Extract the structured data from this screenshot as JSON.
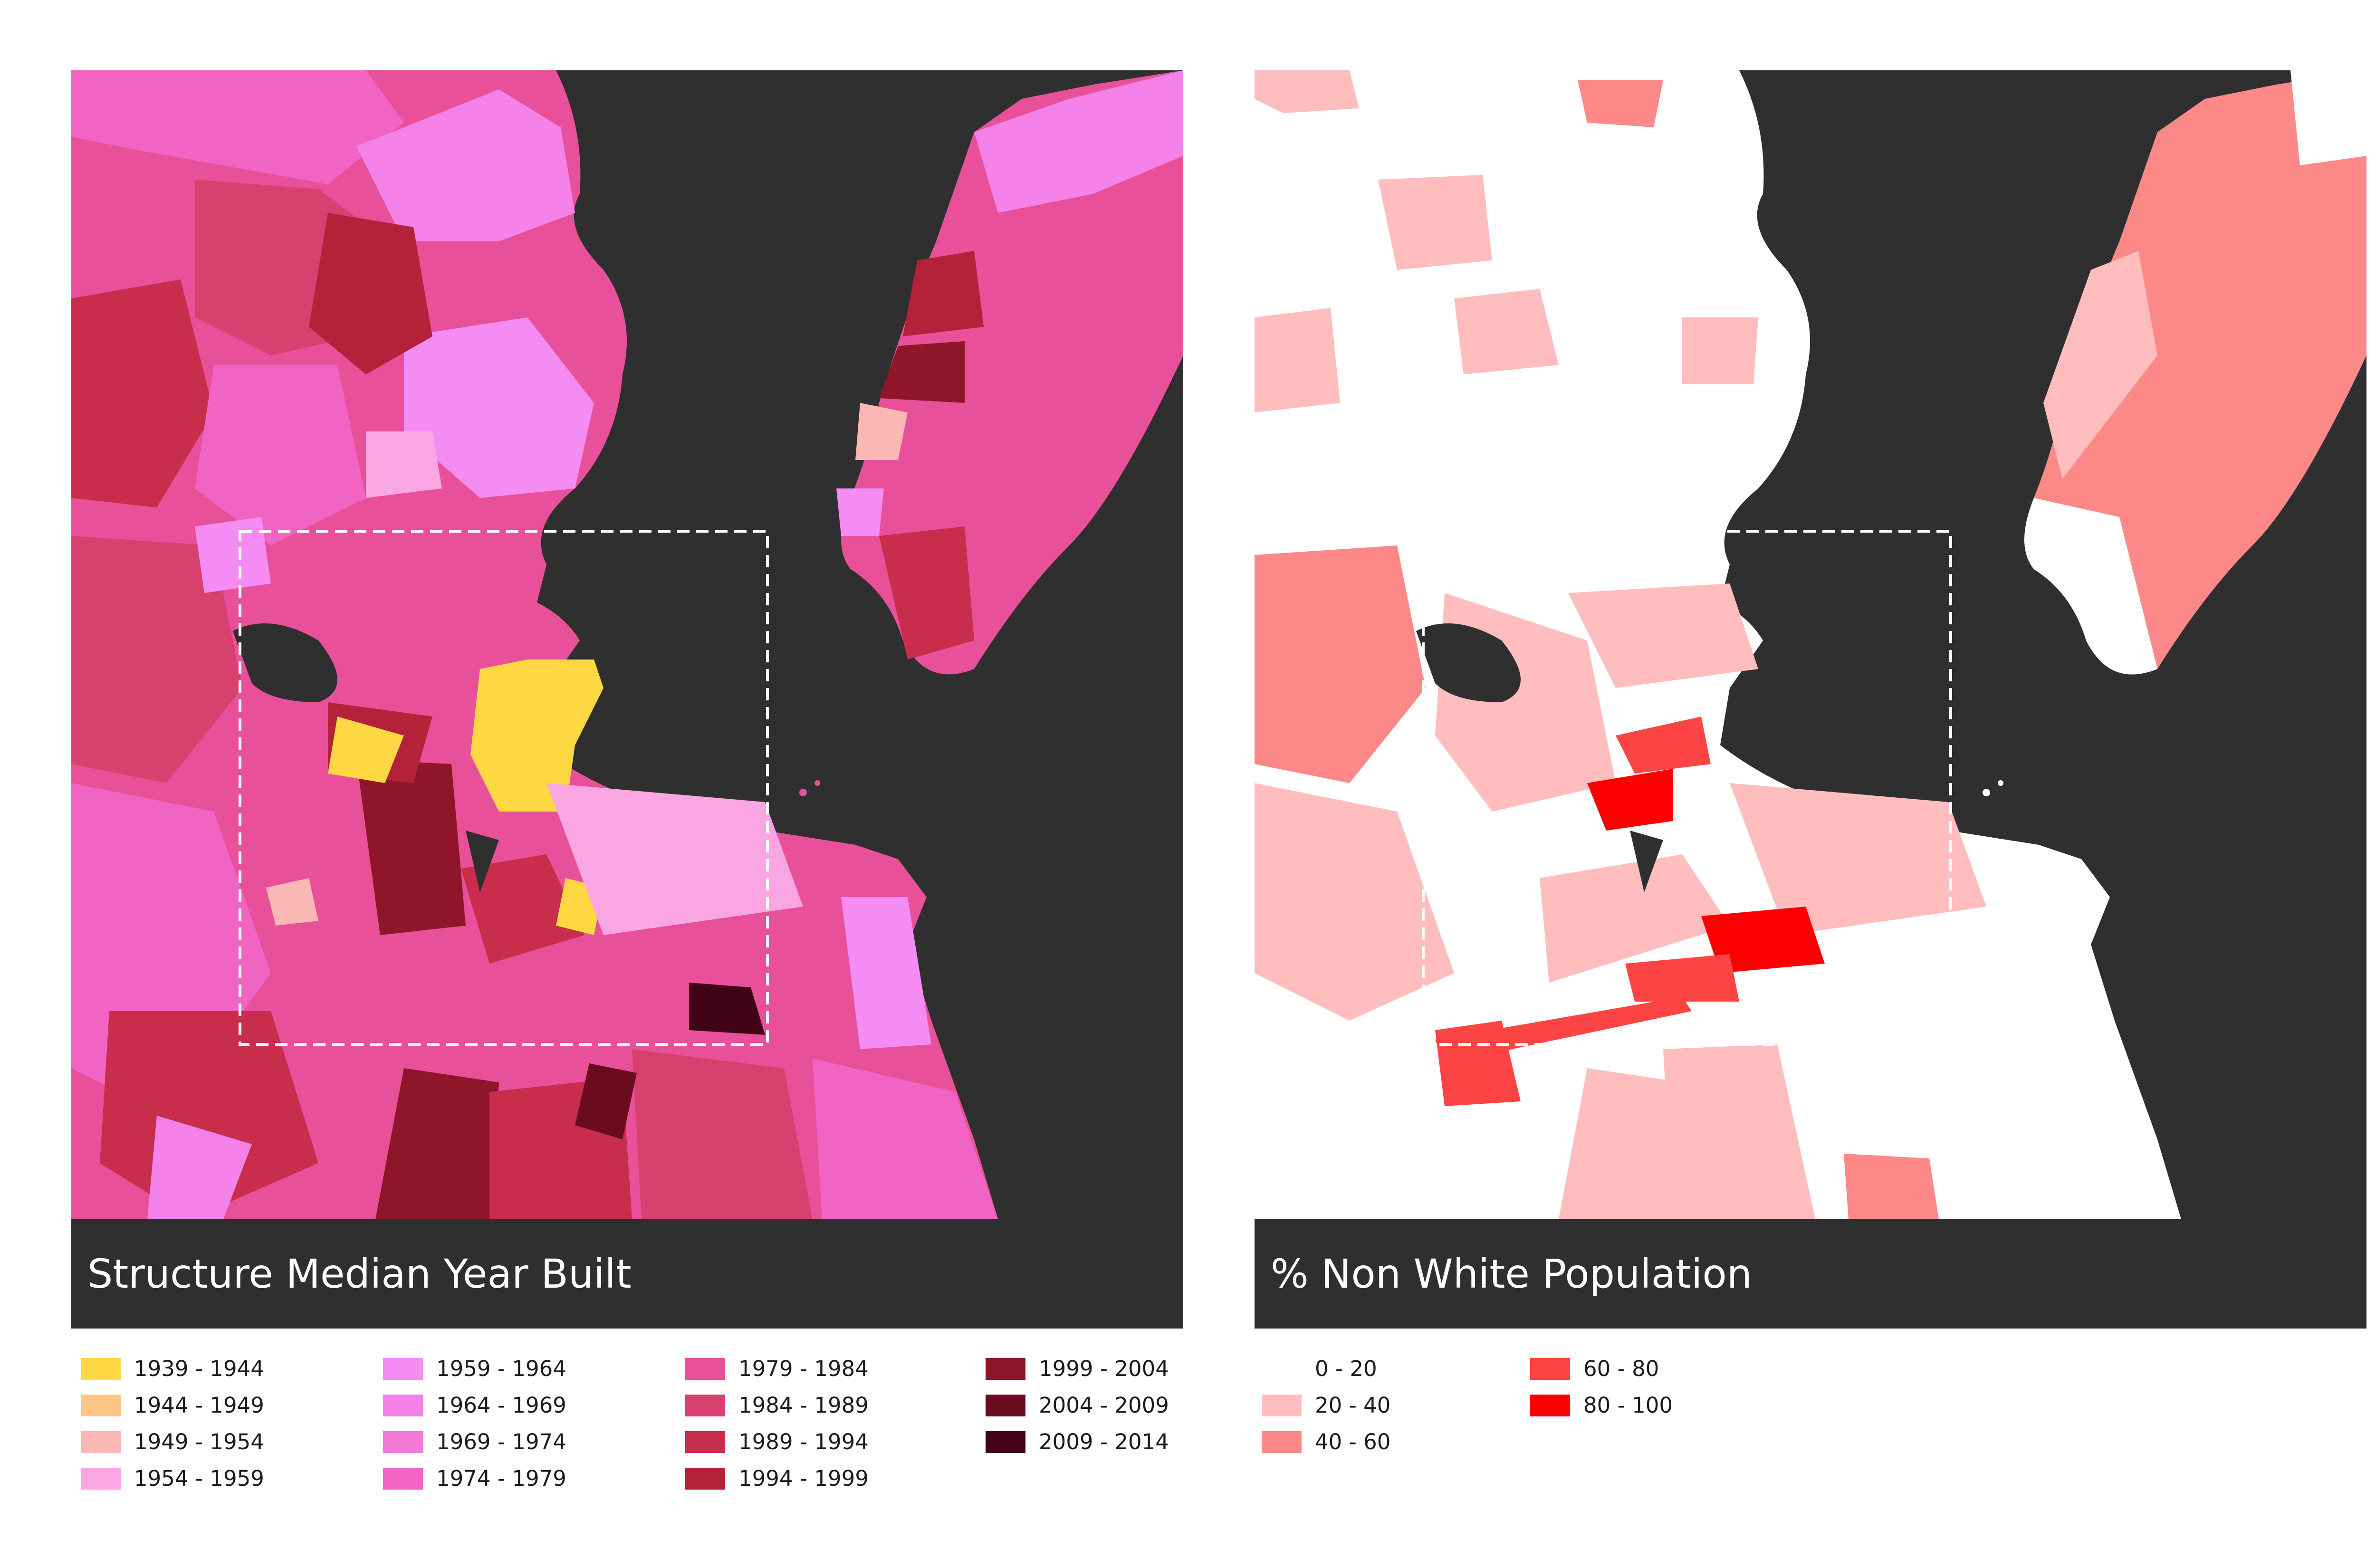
{
  "maps": [
    {
      "id": "year-built",
      "title": "Structure Median Year Built",
      "legend": [
        {
          "label": "1939 - 1944",
          "color": "#fdd843"
        },
        {
          "label": "1944 - 1949",
          "color": "#fcc687"
        },
        {
          "label": "1949 - 1954",
          "color": "#fbb7b3"
        },
        {
          "label": "1954 - 1959",
          "color": "#f9a6e3"
        },
        {
          "label": "1959 - 1964",
          "color": "#f48cf4"
        },
        {
          "label": "1964 - 1969",
          "color": "#f282e7"
        },
        {
          "label": "1969 - 1974",
          "color": "#f47ad8"
        },
        {
          "label": "1974 - 1979",
          "color": "#f264c4"
        },
        {
          "label": "1979 - 1984",
          "color": "#e8509a"
        },
        {
          "label": "1984 - 1989",
          "color": "#d84070"
        },
        {
          "label": "1989 - 1994",
          "color": "#c82d4c"
        },
        {
          "label": "1994 - 1999",
          "color": "#b32238"
        },
        {
          "label": "1999 - 2004",
          "color": "#8e1628"
        },
        {
          "label": "2004 - 2009",
          "color": "#6a0c1e"
        },
        {
          "label": "2009 - 2014",
          "color": "#420216"
        }
      ]
    },
    {
      "id": "non-white",
      "title": "% Non White Population",
      "legend": [
        {
          "label": "0 - 20",
          "color": "#ffffff"
        },
        {
          "label": "20 - 40",
          "color": "#ffbdbd"
        },
        {
          "label": "40 - 60",
          "color": "#fc8888"
        },
        {
          "label": "60 - 80",
          "color": "#fc4444"
        },
        {
          "label": "80 - 100",
          "color": "#fb0000"
        }
      ]
    }
  ],
  "colors": {
    "water": "#2f2f2f",
    "frame": "#ffffff"
  }
}
